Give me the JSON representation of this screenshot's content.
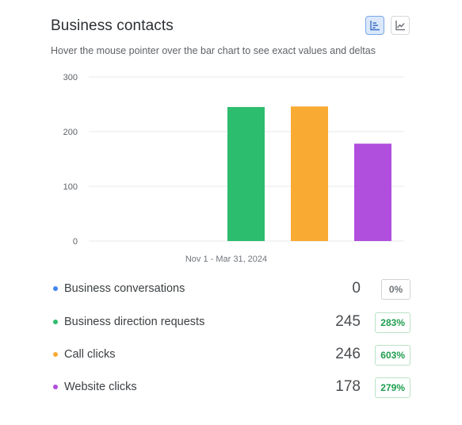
{
  "header": {
    "title": "Business contacts",
    "subtitle": "Hover the mouse pointer over the bar chart to see exact values and deltas"
  },
  "toolbar": {
    "bar_view_icon": "bar-chart-icon",
    "line_view_icon": "line-chart-icon",
    "active_view": "bar"
  },
  "chart_data": {
    "type": "bar",
    "categories": [
      "Nov 1 - Mar 31, 2024"
    ],
    "series": [
      {
        "name": "Business conversations",
        "values": [
          0
        ],
        "color": "#4285f4"
      },
      {
        "name": "Business direction requests",
        "values": [
          245
        ],
        "color": "#2dbd6e"
      },
      {
        "name": "Call clicks",
        "values": [
          246
        ],
        "color": "#f9aa33"
      },
      {
        "name": "Website clicks",
        "values": [
          178
        ],
        "color": "#b04fde"
      }
    ],
    "ylim": [
      0,
      300
    ],
    "yticks": [
      "300",
      "200",
      "100",
      "0"
    ],
    "grid": true,
    "xlabel": "",
    "ylabel": ""
  },
  "metrics": [
    {
      "label": "Business conversations",
      "value": "0",
      "delta": "0%",
      "delta_type": "zero",
      "color": "#4285f4"
    },
    {
      "label": "Business direction requests",
      "value": "245",
      "delta": "283%",
      "delta_type": "pos",
      "color": "#2dbd6e"
    },
    {
      "label": "Call clicks",
      "value": "246",
      "delta": "603%",
      "delta_type": "pos",
      "color": "#f9aa33"
    },
    {
      "label": "Website clicks",
      "value": "178",
      "delta": "279%",
      "delta_type": "pos",
      "color": "#b04fde"
    }
  ]
}
